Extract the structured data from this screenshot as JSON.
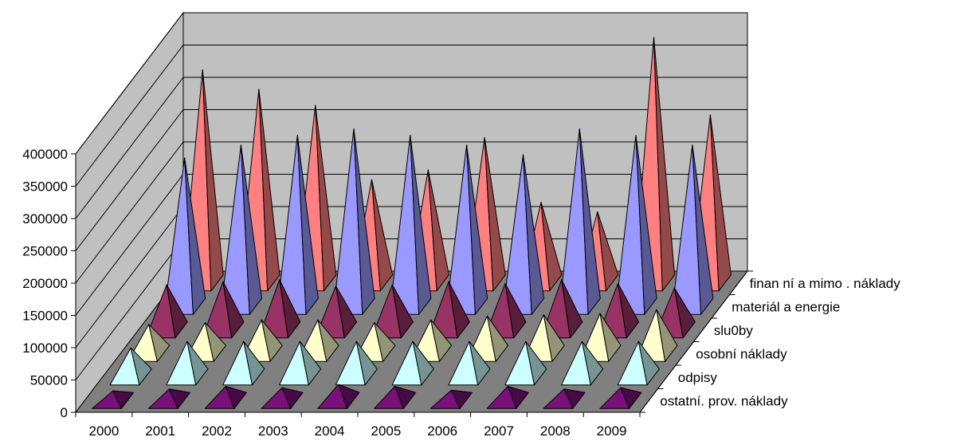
{
  "chart_data": {
    "type": "3d-pyramid-column",
    "categories": [
      "2000",
      "2001",
      "2002",
      "2003",
      "2004",
      "2005",
      "2006",
      "2007",
      "2008",
      "2009"
    ],
    "y_ticks": [
      "0",
      "50000",
      "100000",
      "150000",
      "200000",
      "250000",
      "300000",
      "350000",
      "400000"
    ],
    "ylim": [
      0,
      400000
    ],
    "grid": true,
    "series": [
      {
        "name": "ostatní. prov. náklady",
        "color": "#7a117a",
        "values": [
          15000,
          18000,
          22000,
          20000,
          25000,
          22000,
          16000,
          22000,
          18000,
          20000
        ]
      },
      {
        "name": "odpisy",
        "color": "#ccffff",
        "values": [
          45000,
          55000,
          55000,
          55000,
          55000,
          55000,
          55000,
          55000,
          55000,
          55000
        ]
      },
      {
        "name": "osobní náklady",
        "color": "#ffffcc",
        "values": [
          45000,
          48000,
          52000,
          52000,
          48000,
          52000,
          58000,
          60000,
          62000,
          68000
        ]
      },
      {
        "name": "slu0by",
        "color": "#993366",
        "values": [
          70000,
          75000,
          78000,
          68000,
          70000,
          75000,
          72000,
          78000,
          72000,
          65000
        ]
      },
      {
        "name": "materiál a energie",
        "color": "#9999ff",
        "values": [
          230000,
          250000,
          265000,
          275000,
          265000,
          250000,
          235000,
          275000,
          265000,
          250000
        ]
      },
      {
        "name": "finan ní a mimo . náklady",
        "color": "#ff8080",
        "values": [
          330000,
          300000,
          275000,
          160000,
          175000,
          225000,
          125000,
          110000,
          380000,
          260000
        ]
      }
    ]
  }
}
